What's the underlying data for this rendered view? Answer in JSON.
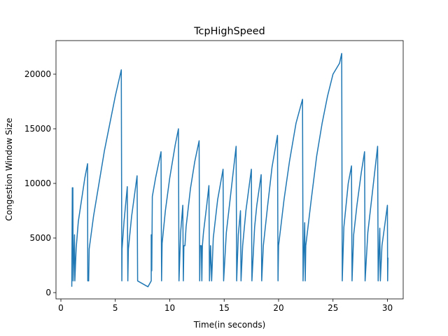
{
  "chart_data": {
    "type": "line",
    "title": "TcpHighSpeed",
    "xlabel": "Time(in seconds)",
    "ylabel": "Congestion Window Size",
    "xlim": [
      -0.45,
      31.45
    ],
    "ylim": [
      -575,
      23075
    ],
    "xticks": [
      0,
      5,
      10,
      15,
      20,
      25,
      30
    ],
    "yticks": [
      0,
      5000,
      10000,
      15000,
      20000
    ],
    "series": [
      {
        "name": "TcpHighSpeed",
        "color": "#1f77b4",
        "x": [
          1.0,
          1.05,
          1.1,
          1.12,
          1.25,
          1.28,
          1.4,
          1.6,
          1.9,
          2.2,
          2.45,
          2.47,
          2.55,
          2.6,
          3.0,
          3.5,
          4.0,
          4.5,
          5.0,
          5.55,
          5.6,
          5.62,
          5.8,
          6.1,
          6.15,
          6.2,
          6.5,
          7.0,
          7.05,
          8.0,
          8.3,
          8.3,
          8.35,
          8.4,
          8.7,
          9.2,
          9.25,
          9.3,
          9.6,
          10.0,
          10.5,
          10.8,
          10.85,
          11.0,
          11.2,
          11.25,
          11.3,
          11.4,
          11.5,
          11.9,
          12.3,
          12.7,
          12.75,
          12.8,
          12.9,
          12.95,
          13.0,
          13.1,
          13.4,
          13.6,
          13.65,
          13.75,
          13.85,
          14.0,
          14.4,
          14.9,
          14.95,
          15.2,
          15.6,
          16.1,
          16.15,
          16.3,
          16.5,
          16.55,
          16.7,
          17.0,
          17.5,
          17.55,
          17.8,
          18.0,
          18.4,
          18.45,
          18.6,
          19.0,
          19.4,
          19.9,
          19.95,
          20.0,
          20.5,
          21.0,
          21.6,
          22.2,
          22.25,
          22.4,
          22.45,
          22.5,
          23.0,
          23.5,
          24.0,
          24.5,
          25.0,
          25.6,
          25.8,
          25.85,
          26.0,
          26.4,
          26.7,
          26.75,
          26.9,
          27.2,
          27.6,
          27.9,
          27.95,
          28.2,
          28.6,
          29.1,
          29.15,
          29.3,
          29.35,
          29.5,
          29.8,
          30.0,
          30.02,
          30.05
        ],
        "values": [
          536,
          9600,
          9600,
          1072,
          5300,
          1072,
          4000,
          6500,
          8500,
          10500,
          11800,
          1072,
          1072,
          4000,
          7000,
          10000,
          13000,
          15500,
          18000,
          20400,
          1072,
          4000,
          6500,
          9700,
          1072,
          4000,
          7000,
          10700,
          1072,
          536,
          1072,
          5300,
          2000,
          8800,
          10500,
          12900,
          1072,
          4500,
          7500,
          10500,
          13500,
          15000,
          1072,
          5500,
          8000,
          1072,
          4300,
          4300,
          6000,
          9500,
          12000,
          13900,
          1072,
          4300,
          4300,
          1072,
          4300,
          5500,
          8000,
          9800,
          1072,
          4300,
          1072,
          5000,
          8500,
          11300,
          1072,
          5500,
          9000,
          13400,
          1072,
          5300,
          7500,
          1072,
          4300,
          7500,
          11300,
          1072,
          6000,
          8000,
          10800,
          1072,
          4300,
          8000,
          11500,
          14400,
          1072,
          4300,
          8500,
          12000,
          15500,
          17700,
          1072,
          6400,
          1072,
          4300,
          8500,
          12500,
          15500,
          18000,
          20000,
          21000,
          21900,
          1072,
          6000,
          10000,
          11600,
          1072,
          5300,
          8000,
          11000,
          12900,
          1072,
          5500,
          9000,
          13400,
          1072,
          5900,
          1072,
          4300,
          6500,
          8000,
          1072,
          3200
        ]
      }
    ]
  }
}
